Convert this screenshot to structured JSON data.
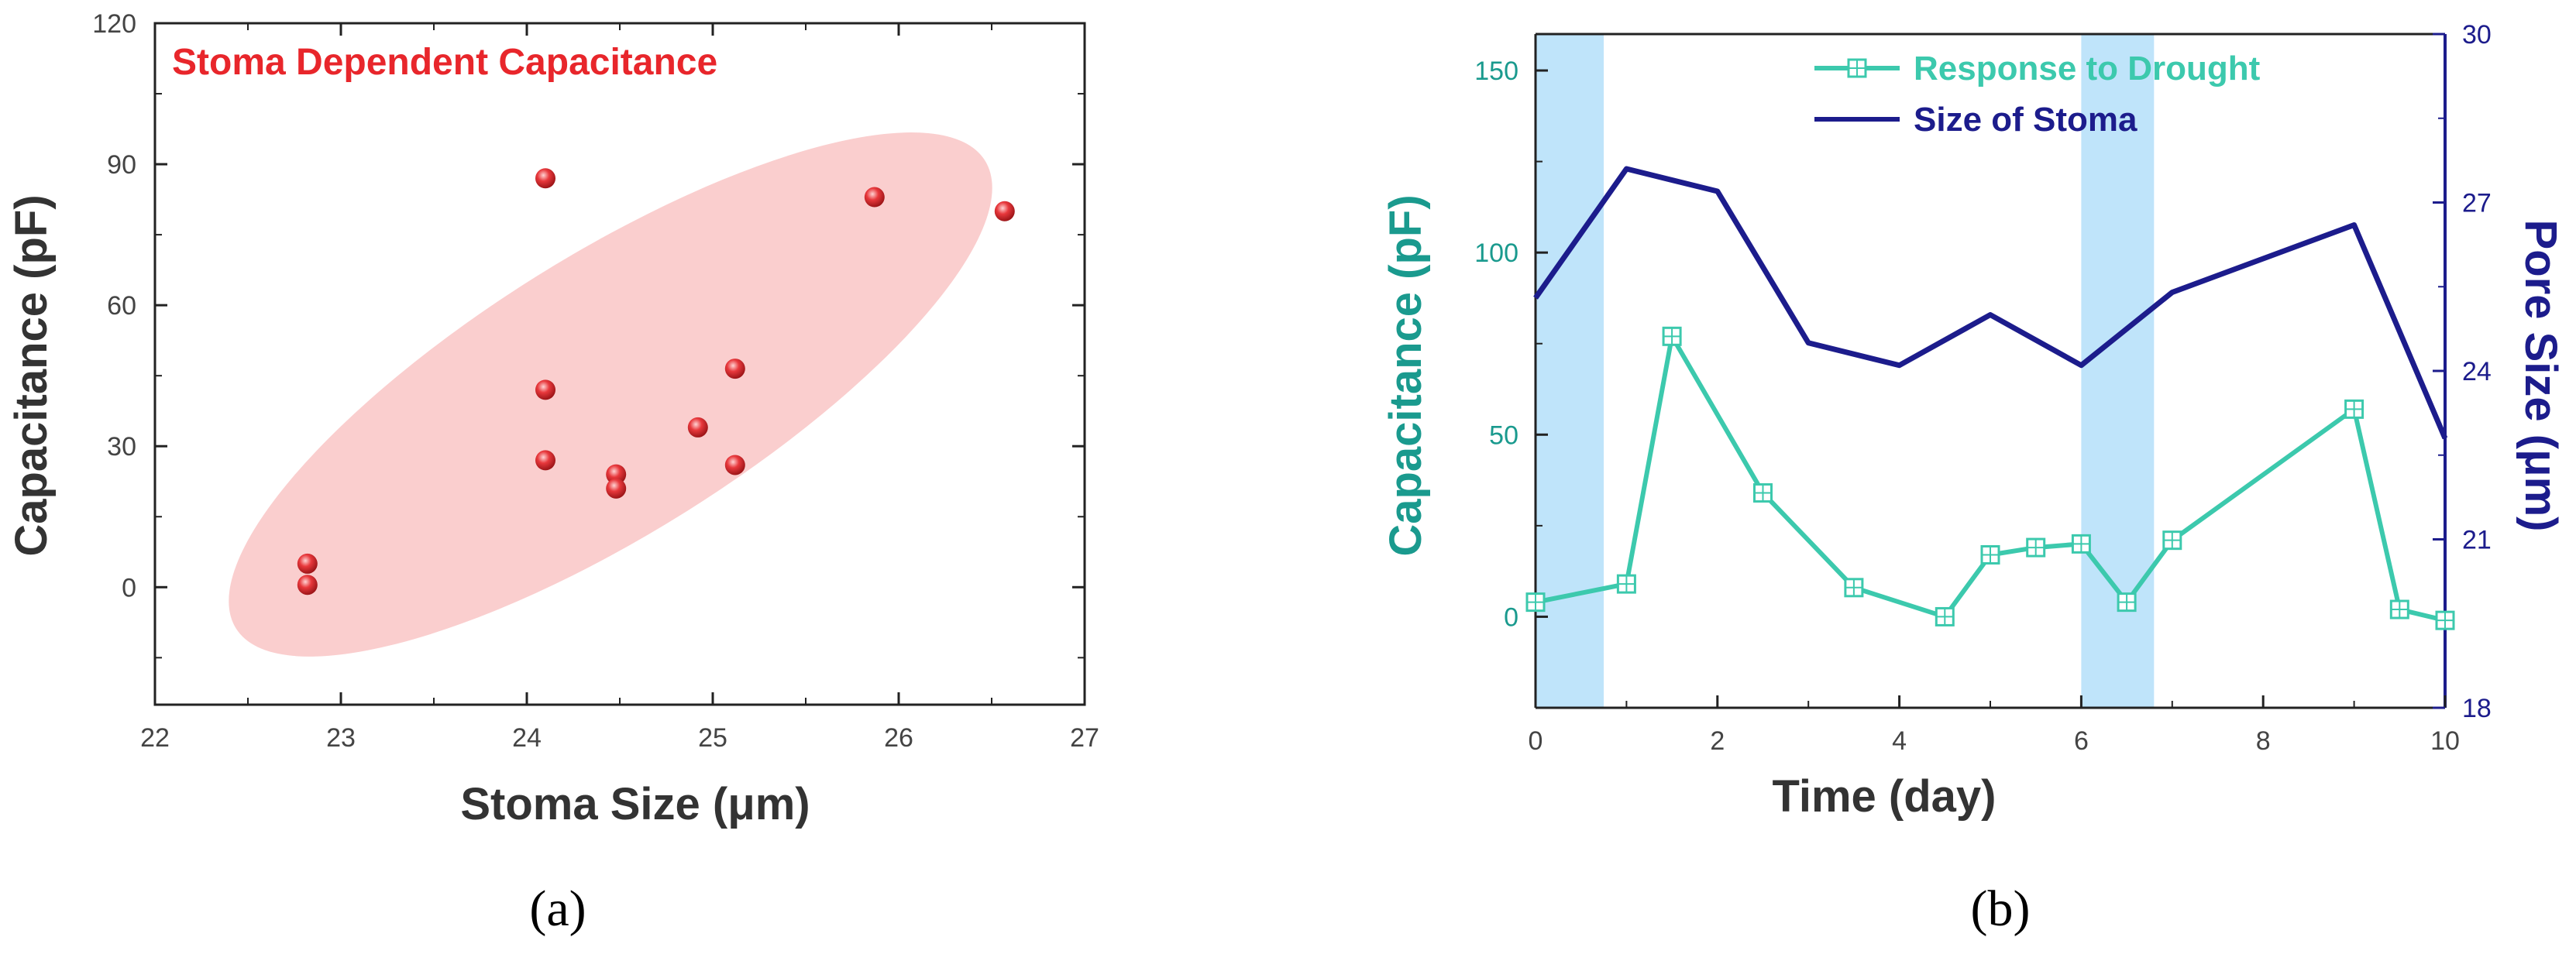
{
  "chart_data": [
    {
      "type": "scatter",
      "title": "Stoma Dependent Capacitance",
      "xlabel": "Stoma Size (μm)",
      "ylabel": "Capacitance (pF)",
      "xlim": [
        22,
        27
      ],
      "ylim": [
        -25,
        120
      ],
      "xticks": [
        "22",
        "23",
        "24",
        "25",
        "26",
        "27"
      ],
      "yticks": [
        "0",
        "30",
        "60",
        "90",
        "120"
      ],
      "points": [
        {
          "x": 22.82,
          "y": 5
        },
        {
          "x": 22.82,
          "y": 0.5
        },
        {
          "x": 24.1,
          "y": 87
        },
        {
          "x": 24.1,
          "y": 42
        },
        {
          "x": 24.1,
          "y": 27
        },
        {
          "x": 24.48,
          "y": 24
        },
        {
          "x": 24.48,
          "y": 21
        },
        {
          "x": 24.92,
          "y": 34
        },
        {
          "x": 25.12,
          "y": 46.5
        },
        {
          "x": 25.12,
          "y": 26
        },
        {
          "x": 25.87,
          "y": 83
        },
        {
          "x": 26.57,
          "y": 80
        }
      ],
      "ellipse": {
        "center_x": 24.45,
        "center_y": 41,
        "label": "confidence region"
      },
      "colors": {
        "points": "#e8383c",
        "ellipse": "#f8b4b4",
        "title": "#e8262b"
      },
      "caption": "(a)"
    },
    {
      "type": "line",
      "xlabel": "Time (day)",
      "ylabel": "Capacitance (pF)",
      "y2label": "Pore Size (μm)",
      "xlim": [
        0,
        10
      ],
      "ylim": [
        -25,
        160
      ],
      "y2lim": [
        18,
        30
      ],
      "xticks": [
        "0",
        "2",
        "4",
        "6",
        "8",
        "10"
      ],
      "yticks": [
        "0",
        "50",
        "100",
        "150"
      ],
      "y2ticks": [
        "18",
        "21",
        "24",
        "27",
        "30"
      ],
      "shaded_regions": [
        [
          0,
          0.75
        ],
        [
          6,
          6.8
        ]
      ],
      "series": [
        {
          "name": "Response to Drought",
          "axis": "left",
          "marker": "square-plus",
          "color": "#3cc9ad",
          "x": [
            0,
            1,
            1.5,
            2.5,
            3.5,
            4.5,
            5,
            5.5,
            6,
            6.5,
            7,
            9,
            9.5,
            10
          ],
          "y": [
            4,
            9,
            77,
            34,
            8,
            0,
            17,
            19,
            20,
            4,
            21,
            57,
            2,
            -1
          ]
        },
        {
          "name": "Size of Stoma",
          "axis": "right",
          "color": "#1c1c8c",
          "x": [
            0,
            1,
            2,
            3,
            4,
            5,
            6,
            7,
            8,
            9,
            10
          ],
          "y": [
            25.3,
            27.6,
            27.2,
            24.5,
            24.1,
            25,
            24.1,
            25.4,
            26,
            26.6,
            22.8
          ]
        }
      ],
      "colors": {
        "left_axis": "#1a9a8e",
        "right_axis": "#1c1c8c",
        "shade": "#bfe4fa"
      },
      "caption": "(b)"
    }
  ]
}
